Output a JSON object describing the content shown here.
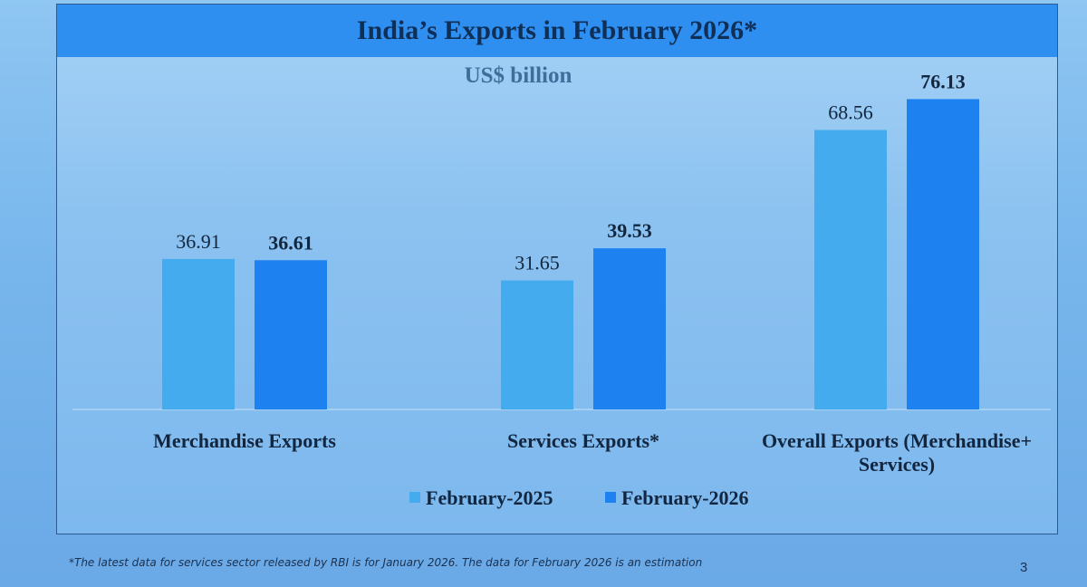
{
  "slide": {
    "title": "India’s Exports in February 2026*",
    "footnote": "*The latest data for services sector released by RBI is for January 2026. The data for February 2026 is an estimation",
    "page_number": "3"
  },
  "chart_data": {
    "type": "bar",
    "title": "India’s Exports in February 2026*",
    "subtitle": "US$ billion",
    "categories": [
      "Merchandise Exports",
      "Services Exports*",
      "Overall Exports (Merchandise+ Services)"
    ],
    "category_lines": [
      [
        "Merchandise Exports"
      ],
      [
        "Services Exports*"
      ],
      [
        "Overall Exports (Merchandise+",
        "Services)"
      ]
    ],
    "series": [
      {
        "name": "February-2025",
        "values": [
          36.91,
          31.65,
          68.56
        ],
        "labels": [
          "36.91",
          "31.65",
          "68.56"
        ],
        "color": "#44acee"
      },
      {
        "name": "February-2026",
        "values": [
          36.61,
          39.53,
          76.13
        ],
        "labels": [
          "36.61",
          "39.53",
          "76.13"
        ],
        "color": "#1d82f0"
      }
    ],
    "ylim": [
      0,
      80
    ],
    "grid": false,
    "legend_position": "bottom"
  }
}
